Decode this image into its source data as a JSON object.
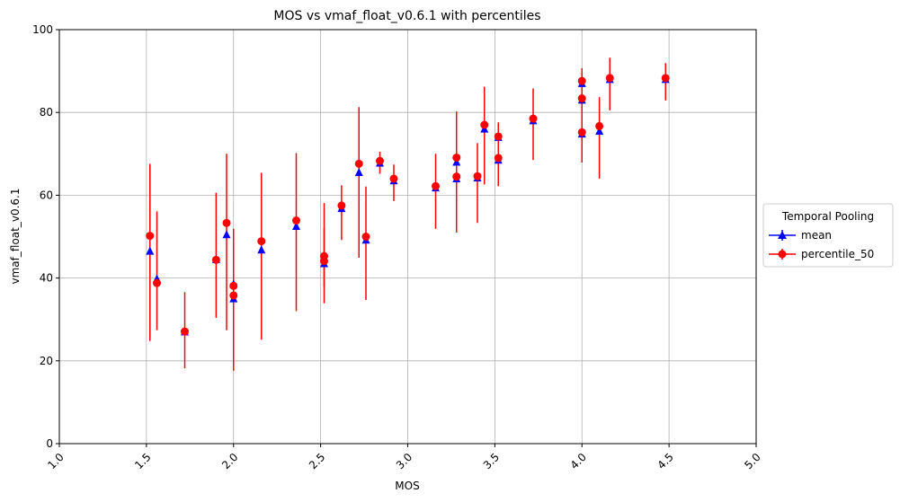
{
  "chart_data": {
    "type": "scatter",
    "title": "MOS vs vmaf_float_v0.6.1 with percentiles",
    "xlabel": "MOS",
    "ylabel": "vmaf_float_v0.6.1",
    "xlim": [
      1.0,
      5.0
    ],
    "ylim": [
      0,
      100
    ],
    "x_ticks": [
      "1.0",
      "1.5",
      "2.0",
      "2.5",
      "3.0",
      "3.5",
      "4.0",
      "4.5",
      "5.0"
    ],
    "y_ticks": [
      "0",
      "20",
      "40",
      "60",
      "80",
      "100"
    ],
    "grid": true,
    "legend": {
      "title": "Temporal Pooling",
      "placement": "outside-right"
    },
    "series": [
      {
        "name": "mean",
        "color": "#0000ff",
        "marker": "triangle",
        "points": [
          {
            "x": 1.52,
            "y": 46.5
          },
          {
            "x": 1.56,
            "y": 39.8
          },
          {
            "x": 1.72,
            "y": 27.0
          },
          {
            "x": 1.9,
            "y": 44.5
          },
          {
            "x": 1.96,
            "y": 50.5
          },
          {
            "x": 2.0,
            "y": 35.0
          },
          {
            "x": 2.0,
            "y": 38.5
          },
          {
            "x": 2.16,
            "y": 46.8
          },
          {
            "x": 2.36,
            "y": 52.5
          },
          {
            "x": 2.52,
            "y": 43.5
          },
          {
            "x": 2.52,
            "y": 45.0
          },
          {
            "x": 2.62,
            "y": 56.8
          },
          {
            "x": 2.72,
            "y": 65.5
          },
          {
            "x": 2.76,
            "y": 49.2
          },
          {
            "x": 2.84,
            "y": 67.8
          },
          {
            "x": 2.92,
            "y": 63.5
          },
          {
            "x": 3.16,
            "y": 61.8
          },
          {
            "x": 3.28,
            "y": 68.0
          },
          {
            "x": 3.28,
            "y": 64.0
          },
          {
            "x": 3.4,
            "y": 64.2
          },
          {
            "x": 3.44,
            "y": 76.0
          },
          {
            "x": 3.52,
            "y": 74.0
          },
          {
            "x": 3.52,
            "y": 68.5
          },
          {
            "x": 3.72,
            "y": 78.0
          },
          {
            "x": 4.0,
            "y": 87.0
          },
          {
            "x": 4.0,
            "y": 83.0
          },
          {
            "x": 4.0,
            "y": 74.8
          },
          {
            "x": 4.1,
            "y": 75.5
          },
          {
            "x": 4.16,
            "y": 88.0
          },
          {
            "x": 4.48,
            "y": 88.0
          }
        ]
      },
      {
        "name": "percentile_50",
        "color": "#ff0000",
        "marker": "circle",
        "points": [
          {
            "x": 1.52,
            "y": 50.2,
            "low": 24.8,
            "high": 67.6
          },
          {
            "x": 1.56,
            "y": 38.8,
            "low": 27.4,
            "high": 56.1
          },
          {
            "x": 1.72,
            "y": 27.1,
            "low": 18.2,
            "high": 36.6
          },
          {
            "x": 1.9,
            "y": 44.4,
            "low": 30.4,
            "high": 60.6
          },
          {
            "x": 1.96,
            "y": 53.3,
            "low": 27.4,
            "high": 70.0
          },
          {
            "x": 2.0,
            "y": 35.8,
            "low": 17.6,
            "high": 42.0
          },
          {
            "x": 2.0,
            "y": 38.1,
            "low": 25.0,
            "high": 51.9
          },
          {
            "x": 2.16,
            "y": 48.9,
            "low": 25.1,
            "high": 65.4
          },
          {
            "x": 2.36,
            "y": 53.9,
            "low": 32.0,
            "high": 70.2
          },
          {
            "x": 2.52,
            "y": 44.1,
            "low": 33.9,
            "high": 58.1
          },
          {
            "x": 2.52,
            "y": 45.3,
            "low": 38.0,
            "high": 52.0
          },
          {
            "x": 2.62,
            "y": 57.5,
            "low": 49.2,
            "high": 62.4
          },
          {
            "x": 2.72,
            "y": 67.6,
            "low": 44.9,
            "high": 81.3
          },
          {
            "x": 2.76,
            "y": 50.0,
            "low": 34.7,
            "high": 62.1
          },
          {
            "x": 2.84,
            "y": 68.3,
            "low": 65.2,
            "high": 70.5
          },
          {
            "x": 2.92,
            "y": 64.0,
            "low": 58.6,
            "high": 67.4
          },
          {
            "x": 3.16,
            "y": 62.2,
            "low": 51.9,
            "high": 70.0
          },
          {
            "x": 3.28,
            "y": 69.1,
            "low": 54.0,
            "high": 80.2
          },
          {
            "x": 3.28,
            "y": 64.5,
            "low": 51.0,
            "high": 75.6
          },
          {
            "x": 3.4,
            "y": 64.6,
            "low": 53.3,
            "high": 72.6
          },
          {
            "x": 3.44,
            "y": 77.0,
            "low": 62.6,
            "high": 86.2
          },
          {
            "x": 3.52,
            "y": 74.2,
            "low": 68.1,
            "high": 77.6
          },
          {
            "x": 3.52,
            "y": 69.0,
            "low": 62.2,
            "high": 73.1
          },
          {
            "x": 3.72,
            "y": 78.5,
            "low": 68.5,
            "high": 85.8
          },
          {
            "x": 4.0,
            "y": 87.6,
            "low": 82.6,
            "high": 90.7
          },
          {
            "x": 4.0,
            "y": 83.4,
            "low": 78.0,
            "high": 87.5
          },
          {
            "x": 4.0,
            "y": 75.2,
            "low": 67.9,
            "high": 82.0
          },
          {
            "x": 4.1,
            "y": 76.7,
            "low": 64.0,
            "high": 83.7
          },
          {
            "x": 4.16,
            "y": 88.3,
            "low": 80.5,
            "high": 93.2
          },
          {
            "x": 4.48,
            "y": 88.3,
            "low": 82.9,
            "high": 91.9
          }
        ]
      }
    ]
  }
}
